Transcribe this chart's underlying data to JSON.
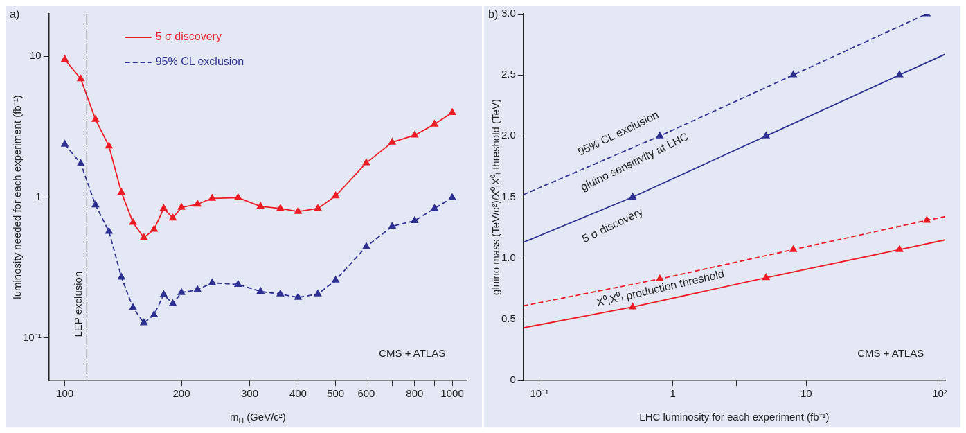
{
  "chart_data": [
    {
      "type": "line",
      "title": "a)",
      "xlabel": "m$_{H}$ (GeV/c²)",
      "ylabel": "luminosity needed for each experiment (fb⁻¹)",
      "log": "xy",
      "x": [
        100,
        110,
        120,
        130,
        140,
        150,
        160,
        170,
        180,
        190,
        200,
        220,
        240,
        280,
        320,
        360,
        400,
        450,
        500,
        600,
        700,
        800,
        900,
        1000
      ],
      "xlim": [
        91,
        1090
      ],
      "xticks": [
        100,
        200,
        300,
        400,
        500,
        600,
        {
          "value": 700,
          "label": null
        },
        800,
        {
          "value": 900,
          "label": null
        },
        1000
      ],
      "ylim": [
        0.05,
        20
      ],
      "yticks": [
        10,
        1,
        {
          "value": 0.1,
          "label": "10⁻¹"
        }
      ],
      "marker": "triangle",
      "legend": "top left",
      "series": [
        {
          "name": "5 σ discovery",
          "color": "#ed1c24",
          "line_style": "solid",
          "values": [
            9.5,
            6.9,
            3.56,
            2.3,
            1.08,
            0.66,
            0.515,
            0.59,
            0.83,
            0.71,
            0.845,
            0.89,
            0.98,
            0.99,
            0.86,
            0.83,
            0.79,
            0.83,
            1.02,
            1.75,
            2.45,
            2.75,
            3.29,
            3.98
          ]
        },
        {
          "name": "95% CL exclusion",
          "color": "#2e3192",
          "line_style": "dashed",
          "values": [
            2.37,
            1.73,
            0.88,
            0.57,
            0.27,
            0.164,
            0.128,
            0.146,
            0.203,
            0.175,
            0.21,
            0.22,
            0.246,
            0.24,
            0.214,
            0.205,
            0.194,
            0.205,
            0.257,
            0.445,
            0.62,
            0.68,
            0.83,
            0.99
          ]
        }
      ],
      "ref_lines": [
        {
          "axis": "x",
          "value": 114,
          "label": "LEP exclusion",
          "color": "#222222",
          "line_style": "dashed"
        }
      ],
      "annotations": [
        "CMS + ATLAS"
      ]
    },
    {
      "type": "line",
      "title": "b)",
      "xlabel": "LHC luminosity for each experiment (fb⁻¹)",
      "ylabel": "gluino mass (TeV/c²)/X⁰ₗX⁰ₗ threshold (TeV)",
      "log": "x",
      "xlim": [
        0.076,
        110
      ],
      "xticks": [
        {
          "value": 0.1,
          "label": "10⁻¹"
        },
        1,
        {
          "value": 3,
          "label": null
        },
        10,
        {
          "value": 100,
          "label": "10²"
        }
      ],
      "ylim": [
        0,
        3
      ],
      "yticks": [
        0,
        0.5,
        {
          "value": 1,
          "label": "1.0"
        },
        1.5,
        {
          "value": 2,
          "label": "2.0"
        },
        2.5,
        {
          "value": 3,
          "label": "3.0"
        }
      ],
      "series": [
        {
          "type": "line",
          "color": "#2e3192",
          "line_style": "dashed",
          "marker": "none",
          "x": [
            0.076,
            0.8,
            8,
            80
          ],
          "values": [
            1.52,
            2.0,
            2.5,
            3.0
          ]
        },
        {
          "type": "line",
          "color": "#2e3192",
          "line_style": "solid",
          "marker": "none",
          "x": [
            0.076,
            0.5,
            5,
            50,
            110
          ],
          "values": [
            1.13,
            1.5,
            2.0,
            2.5,
            2.67
          ]
        },
        {
          "type": "line",
          "color": "#ed1c24",
          "line_style": "dashed",
          "marker": "none",
          "x": [
            0.076,
            0.8,
            8,
            80,
            110
          ],
          "values": [
            0.61,
            0.83,
            1.07,
            1.31,
            1.34
          ]
        },
        {
          "type": "line",
          "color": "#ed1c24",
          "line_style": "solid",
          "marker": "none",
          "x": [
            0.076,
            0.5,
            5,
            50,
            110
          ],
          "values": [
            0.43,
            0.6,
            0.84,
            1.07,
            1.15
          ]
        },
        {
          "type": "scatter",
          "color": "#2e3192",
          "marker": "triangle",
          "x": [
            0.8,
            8,
            80,
            0.5,
            5,
            50
          ],
          "values": [
            2.0,
            2.5,
            3.0,
            1.5,
            2.0,
            2.5
          ]
        },
        {
          "type": "scatter",
          "color": "#ed1c24",
          "marker": "triangle",
          "x": [
            0.8,
            8,
            80,
            0.5,
            5,
            50
          ],
          "values": [
            0.83,
            1.07,
            1.31,
            0.6,
            0.84,
            1.07
          ]
        }
      ],
      "annotations": [
        "95% CL exclusion",
        "gluino sensitivity at LHC",
        "5 σ discovery",
        "X⁰ₗX⁰ₗ production threshold",
        "CMS + ATLAS"
      ]
    }
  ]
}
